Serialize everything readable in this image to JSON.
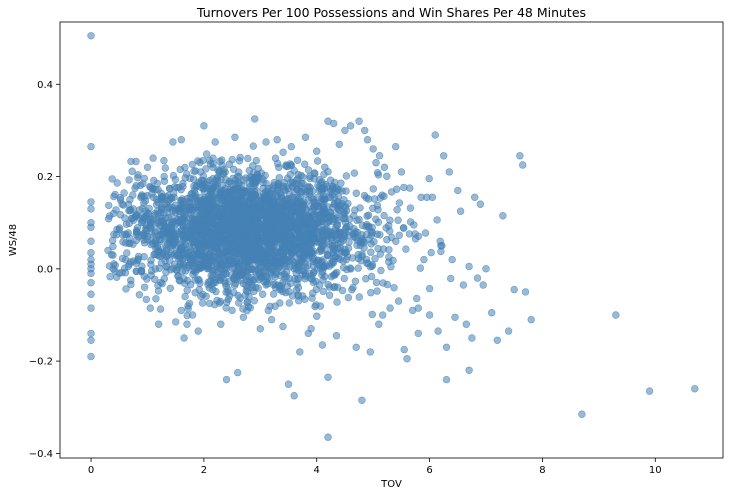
{
  "chart_data": {
    "type": "scatter",
    "title": "Turnovers Per 100 Possessions and Win Shares Per 48 Minutes",
    "xlabel": "TOV",
    "ylabel": "WS/48",
    "xlim": [
      -0.55,
      11.2
    ],
    "ylim": [
      -0.41,
      0.535
    ],
    "x_ticks": [
      0,
      2,
      4,
      6,
      8,
      10
    ],
    "y_ticks": [
      -0.4,
      -0.2,
      0.0,
      0.2,
      0.4
    ],
    "y_tick_labels": [
      "−0.4",
      "−0.2",
      "0.0",
      "0.2",
      "0.4"
    ],
    "grid": false,
    "marker_color": "#4682b4",
    "marker_alpha": 0.55,
    "points": [
      [
        0.0,
        0.505
      ],
      [
        0.0,
        0.265
      ],
      [
        0.0,
        0.145
      ],
      [
        0.0,
        0.13
      ],
      [
        0.0,
        0.1
      ],
      [
        0.0,
        0.09
      ],
      [
        0.0,
        0.06
      ],
      [
        0.0,
        0.035
      ],
      [
        0.0,
        0.02
      ],
      [
        0.0,
        0.01
      ],
      [
        0.0,
        0.0
      ],
      [
        0.0,
        -0.01
      ],
      [
        0.0,
        -0.03
      ],
      [
        0.0,
        -0.055
      ],
      [
        0.0,
        -0.085
      ],
      [
        0.0,
        -0.14
      ],
      [
        0.0,
        -0.155
      ],
      [
        0.0,
        -0.19
      ],
      [
        0.3,
        0.04
      ],
      [
        0.4,
        0.12
      ],
      [
        0.5,
        0.085
      ],
      [
        0.55,
        0.14
      ],
      [
        0.6,
        0.075
      ],
      [
        0.6,
        0.11
      ],
      [
        0.7,
        0.015
      ],
      [
        0.75,
        0.13
      ],
      [
        0.8,
        0.18
      ],
      [
        0.8,
        -0.005
      ],
      [
        0.9,
        0.16
      ],
      [
        0.95,
        -0.04
      ],
      [
        1.0,
        0.22
      ],
      [
        1.05,
        -0.085
      ],
      [
        1.1,
        0.24
      ],
      [
        1.15,
        -0.065
      ],
      [
        1.2,
        -0.12
      ],
      [
        1.3,
        0.19
      ],
      [
        1.4,
        0.15
      ],
      [
        1.45,
        0.275
      ],
      [
        1.5,
        -0.115
      ],
      [
        1.6,
        0.28
      ],
      [
        1.6,
        -0.09
      ],
      [
        1.65,
        -0.15
      ],
      [
        1.7,
        -0.12
      ],
      [
        1.8,
        -0.1
      ],
      [
        1.9,
        -0.135
      ],
      [
        2.0,
        0.31
      ],
      [
        2.1,
        -0.075
      ],
      [
        2.2,
        0.275
      ],
      [
        2.3,
        -0.12
      ],
      [
        2.4,
        -0.24
      ],
      [
        2.5,
        -0.09
      ],
      [
        2.55,
        0.285
      ],
      [
        2.6,
        -0.225
      ],
      [
        2.7,
        -0.105
      ],
      [
        2.8,
        -0.06
      ],
      [
        2.9,
        0.325
      ],
      [
        3.0,
        -0.13
      ],
      [
        3.1,
        0.275
      ],
      [
        3.2,
        -0.11
      ],
      [
        3.3,
        0.28
      ],
      [
        3.4,
        -0.125
      ],
      [
        3.5,
        -0.25
      ],
      [
        3.55,
        0.265
      ],
      [
        3.6,
        -0.275
      ],
      [
        3.7,
        -0.18
      ],
      [
        3.8,
        0.285
      ],
      [
        3.85,
        -0.14
      ],
      [
        3.9,
        -0.13
      ],
      [
        4.0,
        0.255
      ],
      [
        4.1,
        -0.165
      ],
      [
        4.2,
        0.32
      ],
      [
        4.2,
        -0.235
      ],
      [
        4.2,
        -0.365
      ],
      [
        4.3,
        0.315
      ],
      [
        4.35,
        -0.145
      ],
      [
        4.4,
        0.27
      ],
      [
        4.5,
        0.3
      ],
      [
        4.6,
        0.31
      ],
      [
        4.7,
        -0.17
      ],
      [
        4.75,
        0.32
      ],
      [
        4.8,
        -0.285
      ],
      [
        4.85,
        0.3
      ],
      [
        4.9,
        0.28
      ],
      [
        4.95,
        -0.18
      ],
      [
        5.0,
        0.26
      ],
      [
        5.05,
        0.23
      ],
      [
        5.1,
        -0.12
      ],
      [
        5.2,
        0.22
      ],
      [
        5.3,
        -0.085
      ],
      [
        5.4,
        0.265
      ],
      [
        5.45,
        -0.07
      ],
      [
        5.5,
        0.21
      ],
      [
        5.55,
        -0.175
      ],
      [
        5.6,
        -0.195
      ],
      [
        5.65,
        0.175
      ],
      [
        5.7,
        -0.09
      ],
      [
        5.75,
        0.065
      ],
      [
        5.8,
        -0.14
      ],
      [
        5.85,
        0.155
      ],
      [
        5.9,
        0.02
      ],
      [
        5.95,
        0.155
      ],
      [
        6.0,
        -0.1
      ],
      [
        6.05,
        0.155
      ],
      [
        6.1,
        0.29
      ],
      [
        6.15,
        -0.135
      ],
      [
        6.2,
        0.05
      ],
      [
        6.25,
        0.245
      ],
      [
        6.3,
        -0.17
      ],
      [
        6.35,
        0.21
      ],
      [
        6.4,
        0.02
      ],
      [
        6.45,
        -0.105
      ],
      [
        6.5,
        0.17
      ],
      [
        6.55,
        0.125
      ],
      [
        6.6,
        -0.035
      ],
      [
        6.65,
        -0.12
      ],
      [
        6.7,
        0.005
      ],
      [
        6.75,
        -0.15
      ],
      [
        6.8,
        0.155
      ],
      [
        6.85,
        -0.02
      ],
      [
        6.9,
        0.14
      ],
      [
        6.95,
        -0.035
      ],
      [
        7.0,
        0.0
      ],
      [
        7.1,
        -0.095
      ],
      [
        7.2,
        -0.155
      ],
      [
        7.3,
        0.115
      ],
      [
        7.4,
        -0.135
      ],
      [
        7.5,
        -0.045
      ],
      [
        7.6,
        0.245
      ],
      [
        7.65,
        0.225
      ],
      [
        7.7,
        -0.05
      ],
      [
        7.8,
        -0.11
      ],
      [
        8.7,
        -0.315
      ],
      [
        9.3,
        -0.1
      ],
      [
        9.9,
        -0.265
      ],
      [
        10.7,
        -0.26
      ],
      [
        6.3,
        -0.24
      ],
      [
        6.7,
        -0.22
      ],
      [
        5.8,
        -0.085
      ]
    ]
  }
}
